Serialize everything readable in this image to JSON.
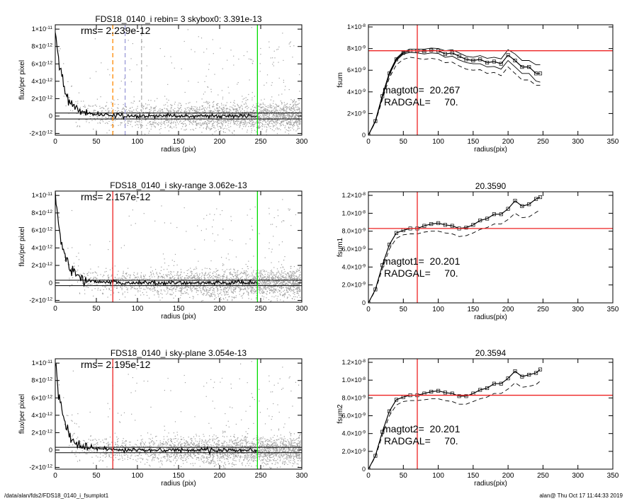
{
  "footer": {
    "left": "/data/alan/fds2/FDS18_0140_i_fsumplot1",
    "right": "alan@  Thu Oct 17 11:44:33 2019"
  },
  "colors": {
    "scatter": "#a0a0a0",
    "profile": "#000000",
    "green_line": "#00dd00",
    "red_line": "#ee2222",
    "orange_line": "#ff8800",
    "blue_dash": "#9a9ad8",
    "gray_dash": "#b0b0b0"
  },
  "chart_data": [
    {
      "id": "left1",
      "type": "scatter",
      "title": "FDS18_0140_i rebin= 3    skybox0:  3.391e-13",
      "annotations": [
        "rms= 2.239e-12"
      ],
      "xlabel": "radius (pix)",
      "ylabel": "flux/per pixel",
      "xlim": [
        0,
        300
      ],
      "ylim": [
        -2.2e-12,
        1.05e-11
      ],
      "xticks": [
        0,
        50,
        100,
        150,
        200,
        250,
        300
      ],
      "yticks": [
        {
          "v": -2e-12,
          "m": "-2×10",
          "e": "-12"
        },
        {
          "v": 0,
          "m": "0",
          "e": ""
        },
        {
          "v": 2e-12,
          "m": "2×10",
          "e": "-12"
        },
        {
          "v": 4e-12,
          "m": "4×10",
          "e": "-12"
        },
        {
          "v": 6e-12,
          "m": "6×10",
          "e": "-12"
        },
        {
          "v": 8e-12,
          "m": "8×10",
          "e": "-12"
        },
        {
          "v": 1e-11,
          "m": "1×10",
          "e": "-11"
        }
      ],
      "hlines": [
        3.4e-13,
        -3.4e-13
      ],
      "vlines": [
        {
          "x": 70,
          "color": "orange_line",
          "dash": true
        },
        {
          "x": 85,
          "color": "blue_dash",
          "dash": true
        },
        {
          "x": 105,
          "color": "gray_dash",
          "dash": true
        },
        {
          "x": 246,
          "color": "green_line",
          "dash": false
        }
      ]
    },
    {
      "id": "left2",
      "type": "scatter",
      "title": "FDS18_0140_i sky-range  3.062e-13",
      "annotations": [
        "rms= 2.157e-12"
      ],
      "xlabel": "radius (pix)",
      "ylabel": "flux/per pixel",
      "xlim": [
        0,
        300
      ],
      "ylim": [
        -2.2e-12,
        1.05e-11
      ],
      "xticks": [
        0,
        50,
        100,
        150,
        200,
        250,
        300
      ],
      "yticks": [
        {
          "v": -2e-12,
          "m": "-2×10",
          "e": "-12"
        },
        {
          "v": 0,
          "m": "0",
          "e": ""
        },
        {
          "v": 2e-12,
          "m": "2×10",
          "e": "-12"
        },
        {
          "v": 4e-12,
          "m": "4×10",
          "e": "-12"
        },
        {
          "v": 6e-12,
          "m": "6×10",
          "e": "-12"
        },
        {
          "v": 8e-12,
          "m": "8×10",
          "e": "-12"
        },
        {
          "v": 1e-11,
          "m": "1×10",
          "e": "-11"
        }
      ],
      "hlines": [
        3.1e-13,
        -3.1e-13
      ],
      "vlines": [
        {
          "x": 70,
          "color": "red_line",
          "dash": false
        },
        {
          "x": 246,
          "color": "green_line",
          "dash": false
        }
      ]
    },
    {
      "id": "left3",
      "type": "scatter",
      "title": "FDS18_0140_i sky-plane  3.054e-13",
      "annotations": [
        "rms= 2.195e-12"
      ],
      "xlabel": "radius (pix)",
      "ylabel": "flux/per pixel",
      "xlim": [
        0,
        300
      ],
      "ylim": [
        -2.2e-12,
        1.05e-11
      ],
      "xticks": [
        0,
        50,
        100,
        150,
        200,
        250,
        300
      ],
      "yticks": [
        {
          "v": -2e-12,
          "m": "-2×10",
          "e": "-12"
        },
        {
          "v": 0,
          "m": "0",
          "e": ""
        },
        {
          "v": 2e-12,
          "m": "2×10",
          "e": "-12"
        },
        {
          "v": 4e-12,
          "m": "4×10",
          "e": "-12"
        },
        {
          "v": 6e-12,
          "m": "6×10",
          "e": "-12"
        },
        {
          "v": 8e-12,
          "m": "8×10",
          "e": "-12"
        },
        {
          "v": 1e-11,
          "m": "1×10",
          "e": "-11"
        }
      ],
      "hlines": [
        3.1e-13,
        -3.1e-13
      ],
      "vlines": [
        {
          "x": 70,
          "color": "red_line",
          "dash": false
        },
        {
          "x": 246,
          "color": "green_line",
          "dash": false
        }
      ]
    },
    {
      "id": "right1",
      "type": "line",
      "title": "",
      "annotations": [
        "magtot0=  20.267",
        "RADGAL=     70."
      ],
      "xlabel": "radius(pix)",
      "ylabel": "fsum",
      "xlim": [
        0,
        350
      ],
      "ylim": [
        0,
        1.02e-08
      ],
      "xticks": [
        0,
        50,
        100,
        150,
        200,
        250,
        300,
        350
      ],
      "yticks": [
        {
          "v": 0,
          "m": "0",
          "e": ""
        },
        {
          "v": 2e-09,
          "m": "2×10",
          "e": "-9"
        },
        {
          "v": 4e-09,
          "m": "4×10",
          "e": "-9"
        },
        {
          "v": 6e-09,
          "m": "6×10",
          "e": "-9"
        },
        {
          "v": 8e-09,
          "m": "8×10",
          "e": "-9"
        },
        {
          "v": 1e-08,
          "m": "1×10",
          "e": "-8"
        }
      ],
      "hline": 7.8e-09,
      "vline": 70,
      "series": [
        {
          "style": "boxes",
          "x": [
            0,
            10,
            20,
            30,
            40,
            50,
            60,
            70,
            80,
            90,
            100,
            110,
            120,
            130,
            140,
            150,
            160,
            170,
            180,
            190,
            200,
            210,
            220,
            230,
            240,
            246
          ],
          "values": [
            0.0,
            1.3e-09,
            3.6e-09,
            5.7e-09,
            7e-09,
            7.6e-09,
            7.8e-09,
            7.8e-09,
            7.75e-09,
            7.85e-09,
            7.8e-09,
            7.5e-09,
            7.6e-09,
            7.3e-09,
            7e-09,
            6.9e-09,
            7e-09,
            6.7e-09,
            6.8e-09,
            6.6e-09,
            7.4e-09,
            6.9e-09,
            6.3e-09,
            6.3e-09,
            5.7e-09,
            5.7e-09
          ]
        },
        {
          "style": "solid",
          "x": [
            0,
            10,
            20,
            30,
            40,
            50,
            60,
            70,
            80,
            90,
            100,
            110,
            120,
            130,
            140,
            150,
            160,
            170,
            180,
            190,
            200,
            210,
            220,
            230,
            240,
            246
          ],
          "values": [
            0.0,
            1.35e-09,
            3.7e-09,
            5.8e-09,
            7.1e-09,
            7.7e-09,
            7.95e-09,
            7.95e-09,
            7.95e-09,
            8.05e-09,
            8e-09,
            7.8e-09,
            7.9e-09,
            7.6e-09,
            7.3e-09,
            7.2e-09,
            7.35e-09,
            7.1e-09,
            7.2e-09,
            7.05e-09,
            7.9e-09,
            7.5e-09,
            6.9e-09,
            6.9e-09,
            6.5e-09,
            6.5e-09
          ]
        },
        {
          "style": "solid",
          "x": [
            0,
            10,
            20,
            30,
            40,
            50,
            60,
            70,
            80,
            90,
            100,
            110,
            120,
            130,
            140,
            150,
            160,
            170,
            180,
            190,
            200,
            210,
            220,
            230,
            240,
            246
          ],
          "values": [
            0.0,
            1.25e-09,
            3.5e-09,
            5.6e-09,
            6.9e-09,
            7.5e-09,
            7.65e-09,
            7.6e-09,
            7.5e-09,
            7.6e-09,
            7.55e-09,
            7.2e-09,
            7.3e-09,
            6.95e-09,
            6.7e-09,
            6.6e-09,
            6.6e-09,
            6.3e-09,
            6.35e-09,
            6.1e-09,
            6.9e-09,
            6.3e-09,
            5.7e-09,
            5.7e-09,
            5e-09,
            4.9e-09
          ]
        },
        {
          "style": "dashed",
          "x": [
            0,
            10,
            20,
            30,
            40,
            50,
            60,
            70,
            80,
            90,
            100,
            110,
            120,
            130,
            140,
            150,
            160,
            170,
            180,
            190,
            200,
            210,
            220,
            230,
            240,
            246
          ],
          "values": [
            0.0,
            1.2e-09,
            3.3e-09,
            5.3e-09,
            6.5e-09,
            7e-09,
            7.2e-09,
            7.1e-09,
            7e-09,
            7.1e-09,
            7e-09,
            6.7e-09,
            6.75e-09,
            6.4e-09,
            6.1e-09,
            6e-09,
            6.05e-09,
            5.7e-09,
            5.8e-09,
            5.5e-09,
            6.3e-09,
            5.7e-09,
            5.1e-09,
            5.1e-09,
            4.6e-09,
            4.6e-09
          ]
        }
      ]
    },
    {
      "id": "right2",
      "type": "line",
      "title": "20.3590",
      "annotations": [
        "magtot1=  20.201",
        "RADGAL=     70."
      ],
      "xlabel": "radius(pix)",
      "ylabel": "fsum1",
      "xlim": [
        0,
        350
      ],
      "ylim": [
        0,
        1.24e-08
      ],
      "xticks": [
        0,
        50,
        100,
        150,
        200,
        250,
        300,
        350
      ],
      "yticks": [
        {
          "v": 0,
          "m": "0",
          "e": ""
        },
        {
          "v": 2e-09,
          "m": "2.0×10",
          "e": "-9"
        },
        {
          "v": 4e-09,
          "m": "4.0×10",
          "e": "-9"
        },
        {
          "v": 6e-09,
          "m": "6.0×10",
          "e": "-9"
        },
        {
          "v": 8e-09,
          "m": "8.0×10",
          "e": "-9"
        },
        {
          "v": 1e-08,
          "m": "1.0×10",
          "e": "-8"
        },
        {
          "v": 1.2e-08,
          "m": "1.2×10",
          "e": "-8"
        }
      ],
      "hline": 8.3e-09,
      "vline": 70,
      "series": [
        {
          "style": "boxes",
          "x": [
            0,
            10,
            20,
            30,
            40,
            50,
            60,
            70,
            80,
            90,
            100,
            110,
            120,
            130,
            140,
            150,
            160,
            170,
            180,
            190,
            200,
            210,
            220,
            230,
            240,
            246
          ],
          "values": [
            0.0,
            1.5e-09,
            4.2e-09,
            6.5e-09,
            7.8e-09,
            8.1e-09,
            8.3e-09,
            8.3e-09,
            8.6e-09,
            8.8e-09,
            8.9e-09,
            8.7e-09,
            8.6e-09,
            8.3e-09,
            8.4e-09,
            8.7e-09,
            9.2e-09,
            9.4e-09,
            9.9e-09,
            9.9e-09,
            1.05e-08,
            1.14e-08,
            1.08e-08,
            1.1e-08,
            1.16e-08,
            1.18e-08
          ]
        },
        {
          "style": "dashed",
          "x": [
            0,
            10,
            20,
            30,
            40,
            50,
            60,
            70,
            80,
            90,
            100,
            110,
            120,
            130,
            140,
            150,
            160,
            170,
            180,
            190,
            200,
            210,
            220,
            230,
            240,
            246
          ],
          "values": [
            0.0,
            1.4e-09,
            3.8e-09,
            6e-09,
            7.2e-09,
            7.6e-09,
            7.7e-09,
            7.7e-09,
            7.9e-09,
            8e-09,
            8e-09,
            7.8e-09,
            7.7e-09,
            7.4e-09,
            7.5e-09,
            7.8e-09,
            8.2e-09,
            8.4e-09,
            8.8e-09,
            8.8e-09,
            9.3e-09,
            1e-08,
            9.5e-09,
            9.6e-09,
            1.01e-08,
            1.04e-08
          ]
        }
      ]
    },
    {
      "id": "right3",
      "type": "line",
      "title": "20.3594",
      "annotations": [
        "magtot2=  20.201",
        "RADGAL=     70."
      ],
      "xlabel": "radius(pix)",
      "ylabel": "fsum2",
      "xlim": [
        0,
        350
      ],
      "ylim": [
        0,
        1.24e-08
      ],
      "xticks": [
        0,
        50,
        100,
        150,
        200,
        250,
        300,
        350
      ],
      "yticks": [
        {
          "v": 0,
          "m": "0",
          "e": ""
        },
        {
          "v": 2e-09,
          "m": "2.0×10",
          "e": "-9"
        },
        {
          "v": 4e-09,
          "m": "4.0×10",
          "e": "-9"
        },
        {
          "v": 6e-09,
          "m": "6.0×10",
          "e": "-9"
        },
        {
          "v": 8e-09,
          "m": "8.0×10",
          "e": "-9"
        },
        {
          "v": 1e-08,
          "m": "1.0×10",
          "e": "-8"
        },
        {
          "v": 1.2e-08,
          "m": "1.2×10",
          "e": "-8"
        }
      ],
      "hline": 8.3e-09,
      "vline": 70,
      "series": [
        {
          "style": "boxes",
          "x": [
            0,
            10,
            20,
            30,
            40,
            50,
            60,
            70,
            80,
            90,
            100,
            110,
            120,
            130,
            140,
            150,
            160,
            170,
            180,
            190,
            200,
            210,
            220,
            230,
            240,
            246
          ],
          "values": [
            0.0,
            1.5e-09,
            4.2e-09,
            6.5e-09,
            7.8e-09,
            8.1e-09,
            8.3e-09,
            8.3e-09,
            8.5e-09,
            8.7e-09,
            8.8e-09,
            8.6e-09,
            8.5e-09,
            8.2e-09,
            8.2e-09,
            8.5e-09,
            8.9e-09,
            9.1e-09,
            9.6e-09,
            9.6e-09,
            1.02e-08,
            1.1e-08,
            1.04e-08,
            1.06e-08,
            1.08e-08,
            1.12e-08
          ]
        },
        {
          "style": "dashed",
          "x": [
            0,
            10,
            20,
            30,
            40,
            50,
            60,
            70,
            80,
            90,
            100,
            110,
            120,
            130,
            140,
            150,
            160,
            170,
            180,
            190,
            200,
            210,
            220,
            230,
            240,
            246
          ],
          "values": [
            0.0,
            1.4e-09,
            3.8e-09,
            6e-09,
            7.2e-09,
            7.6e-09,
            7.7e-09,
            7.7e-09,
            7.8e-09,
            7.9e-09,
            7.9e-09,
            7.7e-09,
            7.6e-09,
            7.3e-09,
            7.3e-09,
            7.6e-09,
            7.9e-09,
            8.1e-09,
            8.5e-09,
            8.5e-09,
            9e-09,
            9.7e-09,
            9.2e-09,
            9.3e-09,
            9.5e-09,
            9.9e-09
          ]
        }
      ]
    }
  ]
}
